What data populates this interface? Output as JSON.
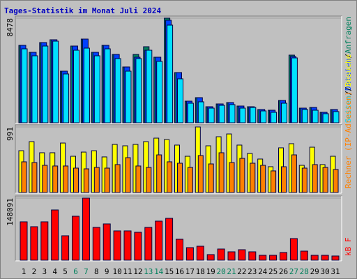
{
  "chart_data": [
    {
      "type": "bar",
      "title": "Tages-Statistik im Monat Juli 2024",
      "legend_separator": "/",
      "ylim": [
        0,
        8478
      ],
      "yticks": [
        8478
      ],
      "series": [
        {
          "name": "Anfragen",
          "color": "#00805c",
          "values": [
            6274,
            5709,
            6500,
            6726,
            4182,
            6217,
            6782,
            5709,
            6274,
            5539,
            4522,
            5539,
            6161,
            5313,
            8478,
            4069,
            1752,
            2035,
            1300,
            1526,
            1639,
            1356,
            1300,
            1074,
            1017,
            1809,
            5482,
            1187,
            1243,
            848,
            1074
          ]
        },
        {
          "name": "Dateien",
          "color": "#0040ff",
          "values": [
            6274,
            5709,
            6500,
            6726,
            4182,
            6217,
            6782,
            5709,
            6274,
            5539,
            4522,
            5313,
            5878,
            5313,
            8308,
            4069,
            1752,
            2035,
            1300,
            1526,
            1639,
            1356,
            1300,
            1074,
            1017,
            1809,
            5369,
            1187,
            1243,
            848,
            1074
          ]
        },
        {
          "name": "Seiten",
          "color": "#00e0ff",
          "values": [
            5991,
            5426,
            6217,
            6613,
            3956,
            5878,
            6048,
            5426,
            5991,
            5200,
            4182,
            5200,
            5878,
            4974,
            7913,
            3561,
            1583,
            1696,
            1187,
            1413,
            1470,
            1187,
            1243,
            961,
            848,
            1583,
            5256,
            1074,
            1017,
            735,
            904
          ]
        }
      ]
    },
    {
      "type": "bar",
      "legend_separator": "/",
      "ylim": [
        0,
        991
      ],
      "yticks": [
        991
      ],
      "series": [
        {
          "name": "Besuche",
          "color": "#ffff00",
          "values": [
            632,
            769,
            601,
            601,
            748,
            548,
            611,
            632,
            538,
            727,
            706,
            727,
            769,
            822,
            801,
            717,
            548,
            991,
            706,
            843,
            885,
            717,
            590,
            506,
            390,
            675,
            738,
            411,
            685,
            422,
            548
          ]
        },
        {
          "name": "Rechner (IP-Adressen)",
          "color": "#ff8000",
          "values": [
            464,
            453,
            411,
            401,
            401,
            369,
            358,
            379,
            369,
            422,
            527,
            401,
            379,
            569,
            464,
            443,
            379,
            559,
            432,
            601,
            453,
            516,
            443,
            411,
            327,
            390,
            569,
            369,
            422,
            379,
            348
          ]
        }
      ]
    },
    {
      "type": "bar",
      "ylim": [
        0,
        148091
      ],
      "yticks": [
        148091
      ],
      "categories": [
        "1",
        "2",
        "3",
        "4",
        "5",
        "6",
        "7",
        "8",
        "9",
        "10",
        "11",
        "12",
        "13",
        "14",
        "15",
        "16",
        "17",
        "18",
        "19",
        "20",
        "21",
        "22",
        "23",
        "24",
        "25",
        "26",
        "27",
        "28",
        "29",
        "30",
        "31"
      ],
      "highlight_categories": [
        "6",
        "7",
        "13",
        "14",
        "20",
        "21",
        "27",
        "28"
      ],
      "label_color": "#000000",
      "highlight_color": "#00805c",
      "series": [
        {
          "name": "kB F",
          "color": "#ff0000",
          "values": [
            91520,
            79872,
            91520,
            119808,
            58240,
            104832,
            148091,
            78208,
            86528,
            69888,
            69888,
            66560,
            78208,
            93184,
            99840,
            49920,
            29952,
            33280,
            13312,
            26624,
            19968,
            24960,
            19968,
            11648,
            11648,
            18304,
            51584,
            21632,
            11648,
            11648,
            9984
          ]
        }
      ]
    }
  ]
}
